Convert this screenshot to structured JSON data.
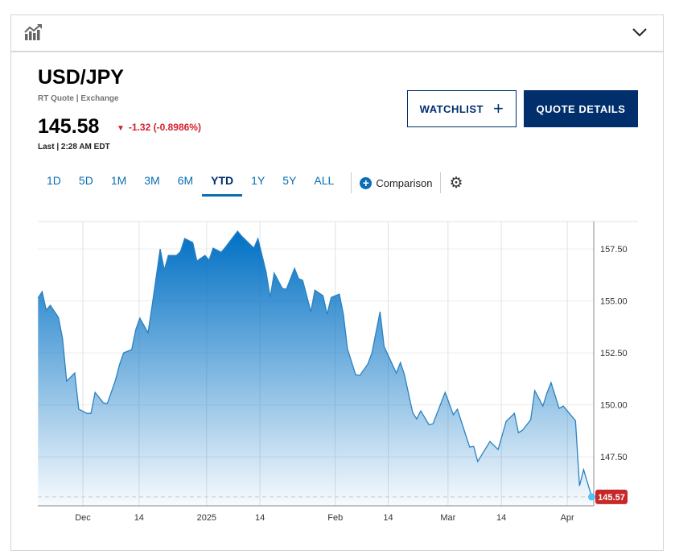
{
  "header": {
    "symbol": "USD/JPY",
    "source": "RT Quote | Exchange",
    "price": "145.58",
    "change": "-1.32 (-0.8986%)",
    "last": "Last | 2:28 AM EDT"
  },
  "buttons": {
    "watchlist": "WATCHLIST",
    "quote_details": "QUOTE DETAILS"
  },
  "ranges": [
    "1D",
    "5D",
    "1M",
    "3M",
    "6M",
    "YTD",
    "1Y",
    "5Y",
    "ALL"
  ],
  "active_range": "YTD",
  "comparison_label": "Comparison",
  "colors": {
    "accent": "#0a6eb4",
    "navy": "#002f6c",
    "down": "#d4202c",
    "line": "#2a82c0"
  },
  "chart_data": {
    "type": "area",
    "xunit": "days since Dec 1, 2024",
    "ylim": [
      145.14,
      158.82
    ],
    "xlim": [
      -11,
      125.5
    ],
    "yticks": [
      147.5,
      150,
      152.5,
      155,
      157.5
    ],
    "ytick_labels": [
      "147.50",
      "150.00",
      "152.50",
      "155.00",
      "157.50"
    ],
    "xticks": [
      {
        "label": "Dec",
        "x": 0
      },
      {
        "label": "14",
        "x": 13.8
      },
      {
        "label": "2025",
        "x": 30.4
      },
      {
        "label": "14",
        "x": 43.5
      },
      {
        "label": "Feb",
        "x": 62
      },
      {
        "label": "14",
        "x": 75
      },
      {
        "label": "Mar",
        "x": 89.7
      },
      {
        "label": "14",
        "x": 102.8
      },
      {
        "label": "Apr",
        "x": 119
      }
    ],
    "last_value_label": "145.57",
    "last_value": 145.57,
    "x": [
      -11,
      -10,
      -9,
      -8,
      -6,
      -5,
      -4,
      -2,
      -1,
      1,
      2,
      3,
      5,
      6,
      8,
      9,
      10,
      12,
      13,
      14,
      16,
      17,
      19,
      20,
      21,
      23,
      24,
      25,
      27,
      28,
      30,
      31,
      32,
      34,
      35,
      38,
      39,
      41,
      42,
      43,
      45,
      46,
      47,
      49,
      50,
      52,
      53,
      54,
      56,
      57,
      59,
      60,
      61,
      63,
      64,
      65,
      67,
      68,
      70,
      71,
      73,
      74,
      75,
      77,
      78,
      79,
      81,
      82,
      83,
      85,
      86,
      89,
      91,
      92,
      95,
      96,
      97,
      100,
      102,
      104,
      106,
      107,
      108,
      110,
      111,
      113,
      114,
      115,
      117,
      118,
      121,
      122,
      123,
      125
    ],
    "y": [
      155.14,
      155.45,
      154.55,
      154.79,
      154.21,
      153.2,
      151.14,
      151.53,
      149.79,
      149.59,
      149.59,
      150.6,
      150.1,
      150.06,
      151.18,
      151.92,
      152.5,
      152.66,
      153.62,
      154.17,
      153.47,
      154.75,
      157.5,
      156.49,
      157.19,
      157.19,
      157.38,
      158.0,
      157.81,
      156.92,
      157.19,
      156.96,
      157.54,
      157.34,
      157.58,
      158.35,
      158.12,
      157.73,
      157.54,
      158.0,
      156.41,
      155.17,
      156.34,
      155.6,
      155.56,
      156.57,
      156.07,
      155.99,
      154.48,
      155.52,
      155.25,
      154.36,
      155.17,
      155.33,
      154.36,
      152.69,
      151.45,
      151.41,
      151.96,
      152.5,
      154.48,
      152.81,
      152.38,
      151.53,
      152.03,
      151.45,
      149.63,
      149.32,
      149.71,
      149.05,
      149.09,
      150.6,
      149.52,
      149.79,
      147.97,
      148.0,
      147.27,
      148.24,
      147.85,
      149.21,
      149.59,
      148.66,
      148.78,
      149.28,
      150.68,
      149.94,
      150.56,
      151.07,
      149.83,
      149.94,
      149.24,
      146.1,
      146.88,
      145.57
    ]
  }
}
